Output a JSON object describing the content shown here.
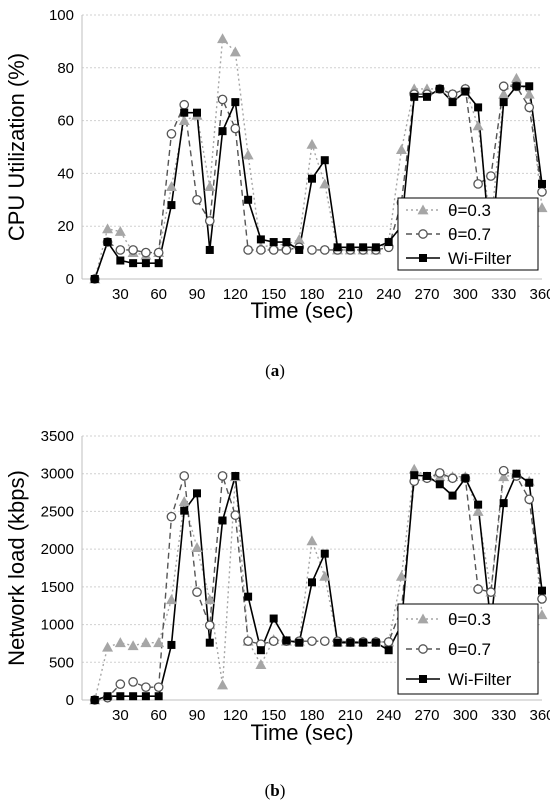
{
  "chart_data": [
    {
      "type": "line",
      "caption_letter": "a",
      "xlabel": "Time (sec)",
      "ylabel": "CPU Utilization (%)",
      "xlim": [
        0,
        360
      ],
      "ylim": [
        0,
        100
      ],
      "xticks": [
        30,
        60,
        90,
        120,
        150,
        180,
        210,
        240,
        270,
        300,
        330,
        360
      ],
      "yticks": [
        0,
        20,
        40,
        60,
        80,
        100
      ],
      "grid": "horizontal",
      "legend_position": "bottom-right",
      "series": [
        {
          "name": "θ=0.3",
          "color": "#a6a6a6",
          "line": "dotted",
          "marker": "triangle",
          "x": [
            10,
            20,
            30,
            40,
            50,
            60,
            70,
            80,
            90,
            100,
            110,
            120,
            130,
            140,
            150,
            160,
            170,
            180,
            190,
            200,
            210,
            220,
            230,
            240,
            250,
            260,
            270,
            280,
            290,
            300,
            310,
            320,
            330,
            340,
            350,
            360
          ],
          "y": [
            0,
            19,
            18,
            10,
            9,
            10,
            35,
            60,
            62,
            35,
            91,
            86,
            47,
            12,
            13,
            13,
            15,
            51,
            36,
            11,
            11,
            11,
            11,
            14,
            49,
            72,
            72,
            72,
            70,
            72,
            58,
            20,
            70,
            76,
            70,
            27
          ]
        },
        {
          "name": "θ=0.7",
          "color": "#555555",
          "line": "dashed",
          "marker": "circle-open",
          "x": [
            10,
            20,
            30,
            40,
            50,
            60,
            70,
            80,
            90,
            100,
            110,
            120,
            130,
            140,
            150,
            160,
            170,
            180,
            190,
            200,
            210,
            220,
            230,
            240,
            250,
            260,
            270,
            280,
            290,
            300,
            310,
            320,
            330,
            340,
            350,
            360
          ],
          "y": [
            0,
            14,
            11,
            11,
            10,
            10,
            55,
            66,
            30,
            22,
            68,
            57,
            11,
            11,
            11,
            11,
            12,
            11,
            11,
            11,
            11,
            11,
            11,
            12,
            29,
            70,
            70,
            72,
            70,
            72,
            36,
            39,
            73,
            73,
            65,
            33
          ]
        },
        {
          "name": "Wi-Filter",
          "color": "#000000",
          "line": "solid",
          "marker": "square",
          "x": [
            10,
            20,
            30,
            40,
            50,
            60,
            70,
            80,
            90,
            100,
            110,
            120,
            130,
            140,
            150,
            160,
            170,
            180,
            190,
            200,
            210,
            220,
            230,
            240,
            250,
            260,
            270,
            280,
            290,
            300,
            310,
            320,
            330,
            340,
            350,
            360
          ],
          "y": [
            0,
            14,
            7,
            6,
            6,
            6,
            28,
            63,
            63,
            11,
            56,
            67,
            30,
            15,
            14,
            14,
            11,
            38,
            45,
            12,
            12,
            12,
            12,
            14,
            20,
            69,
            69,
            72,
            67,
            71,
            65,
            9,
            67,
            73,
            73,
            36
          ]
        }
      ]
    },
    {
      "type": "line",
      "caption_letter": "b",
      "xlabel": "Time (sec)",
      "ylabel": "Network load (kbps)",
      "xlim": [
        0,
        360
      ],
      "ylim": [
        0,
        3500
      ],
      "xticks": [
        30,
        60,
        90,
        120,
        150,
        180,
        210,
        240,
        270,
        300,
        330,
        360
      ],
      "yticks": [
        0,
        500,
        1000,
        1500,
        2000,
        2500,
        3000,
        3500
      ],
      "grid": "horizontal",
      "legend_position": "bottom-right",
      "series": [
        {
          "name": "θ=0.3",
          "color": "#a6a6a6",
          "line": "dotted",
          "marker": "triangle",
          "x": [
            10,
            20,
            30,
            40,
            50,
            60,
            70,
            80,
            90,
            100,
            110,
            120,
            130,
            140,
            150,
            160,
            170,
            180,
            190,
            200,
            210,
            220,
            230,
            240,
            250,
            260,
            270,
            280,
            290,
            300,
            310,
            320,
            330,
            340,
            350,
            360
          ],
          "y": [
            0,
            700,
            760,
            720,
            760,
            760,
            1330,
            2630,
            2020,
            1330,
            200,
            2960,
            780,
            470,
            800,
            780,
            780,
            2110,
            1640,
            770,
            770,
            770,
            770,
            770,
            1640,
            3060,
            2960,
            2960,
            2960,
            2960,
            2500,
            1430,
            2960,
            2990,
            2900,
            1130
          ]
        },
        {
          "name": "θ=0.7",
          "color": "#555555",
          "line": "dashed",
          "marker": "circle-open",
          "x": [
            10,
            20,
            30,
            40,
            50,
            60,
            70,
            80,
            90,
            100,
            110,
            120,
            130,
            140,
            150,
            160,
            170,
            180,
            190,
            200,
            210,
            220,
            230,
            240,
            250,
            260,
            270,
            280,
            290,
            300,
            310,
            320,
            330,
            340,
            350,
            360
          ],
          "y": [
            0,
            30,
            210,
            240,
            170,
            170,
            2430,
            2970,
            1430,
            990,
            2970,
            2450,
            780,
            740,
            780,
            780,
            780,
            780,
            780,
            780,
            770,
            770,
            770,
            770,
            1210,
            2900,
            2940,
            3010,
            2940,
            2940,
            1470,
            1430,
            3040,
            2970,
            2660,
            1340
          ]
        },
        {
          "name": "Wi-Filter",
          "color": "#000000",
          "line": "solid",
          "marker": "square",
          "x": [
            10,
            20,
            30,
            40,
            50,
            60,
            70,
            80,
            90,
            100,
            110,
            120,
            130,
            140,
            150,
            160,
            170,
            180,
            190,
            200,
            210,
            220,
            230,
            240,
            250,
            260,
            270,
            280,
            290,
            300,
            310,
            320,
            330,
            340,
            350,
            360
          ],
          "y": [
            0,
            50,
            50,
            50,
            50,
            50,
            730,
            2510,
            2740,
            760,
            2380,
            2970,
            1370,
            660,
            1080,
            790,
            760,
            1560,
            1940,
            760,
            760,
            760,
            760,
            660,
            1000,
            2980,
            2970,
            2860,
            2710,
            2940,
            2590,
            1010,
            2610,
            3000,
            2880,
            1450
          ]
        }
      ]
    }
  ]
}
